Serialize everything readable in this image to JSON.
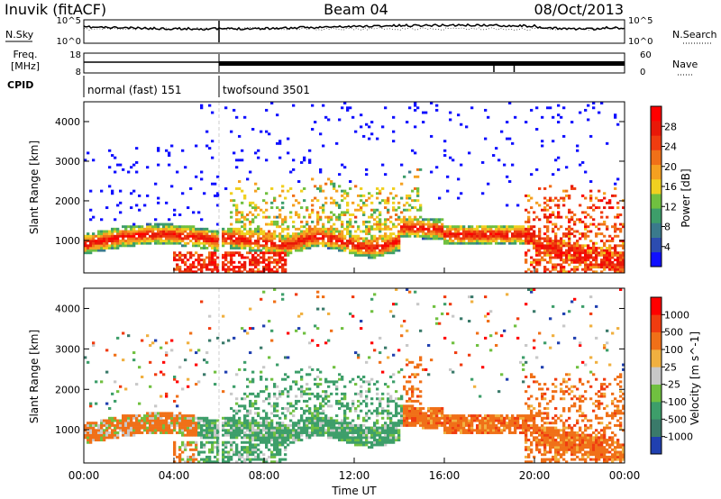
{
  "header": {
    "station": "Inuvik (fitACF)",
    "beam": "Beam 04",
    "date": "08/Oct/2013"
  },
  "top_panels": {
    "nsky_label": "N.Sky",
    "nsearch_label": "N.Search",
    "noise_ticks_left": [
      "10^5",
      "10^0"
    ],
    "noise_ticks_right": [
      "10^5",
      "10^0"
    ],
    "freq_label_1": "Freq.",
    "freq_label_2": "[MHz]",
    "freq_ticks": [
      "18",
      "8"
    ],
    "nave_label": "Nave",
    "nave_ticks": [
      "60",
      "0"
    ],
    "cpid_label": "CPID",
    "cpid_segments": [
      {
        "label": "normal (fast) 151",
        "start_h": 0.0,
        "end_h": 6.0
      },
      {
        "label": "twofsound 3501",
        "start_h": 6.0,
        "end_h": 24.0
      }
    ]
  },
  "chart_data": [
    {
      "type": "heatmap",
      "name": "power",
      "ylabel": "Slant Range [km]",
      "xlim": [
        0,
        24
      ],
      "ylim": [
        180,
        4500
      ],
      "yticks": [
        "1000",
        "2000",
        "3000",
        "4000"
      ],
      "colorbar": {
        "label": "Power [dB]",
        "ticks": [
          "28",
          "24",
          "20",
          "16",
          "12",
          "8",
          "4"
        ],
        "colors": [
          "#1010ff",
          "#2c4cb0",
          "#3a7a8c",
          "#3d9e6a",
          "#70c040",
          "#f0d020",
          "#f5a020",
          "#f07018",
          "#f03c10",
          "#e81808",
          "#ff0000"
        ]
      }
    },
    {
      "type": "heatmap",
      "name": "velocity",
      "ylabel": "Slant Range [km]",
      "xlabel": "Time UT",
      "xlim": [
        0,
        24
      ],
      "ylim": [
        180,
        4500
      ],
      "xticks": [
        "00:00",
        "04:00",
        "08:00",
        "12:00",
        "16:00",
        "20:00",
        "00:00"
      ],
      "yticks": [
        "1000",
        "2000",
        "3000",
        "4000"
      ],
      "colorbar": {
        "label": "Velocity [m s^-1]",
        "ticks": [
          "1000",
          "500",
          "100",
          "25",
          "-25",
          "-100",
          "-500",
          "-1000"
        ],
        "colors": [
          "#2040b0",
          "#3a7a6a",
          "#3d9e6a",
          "#70c040",
          "#c8c8c8",
          "#f0b040",
          "#f07018",
          "#f03c10",
          "#ff0000"
        ]
      }
    }
  ]
}
